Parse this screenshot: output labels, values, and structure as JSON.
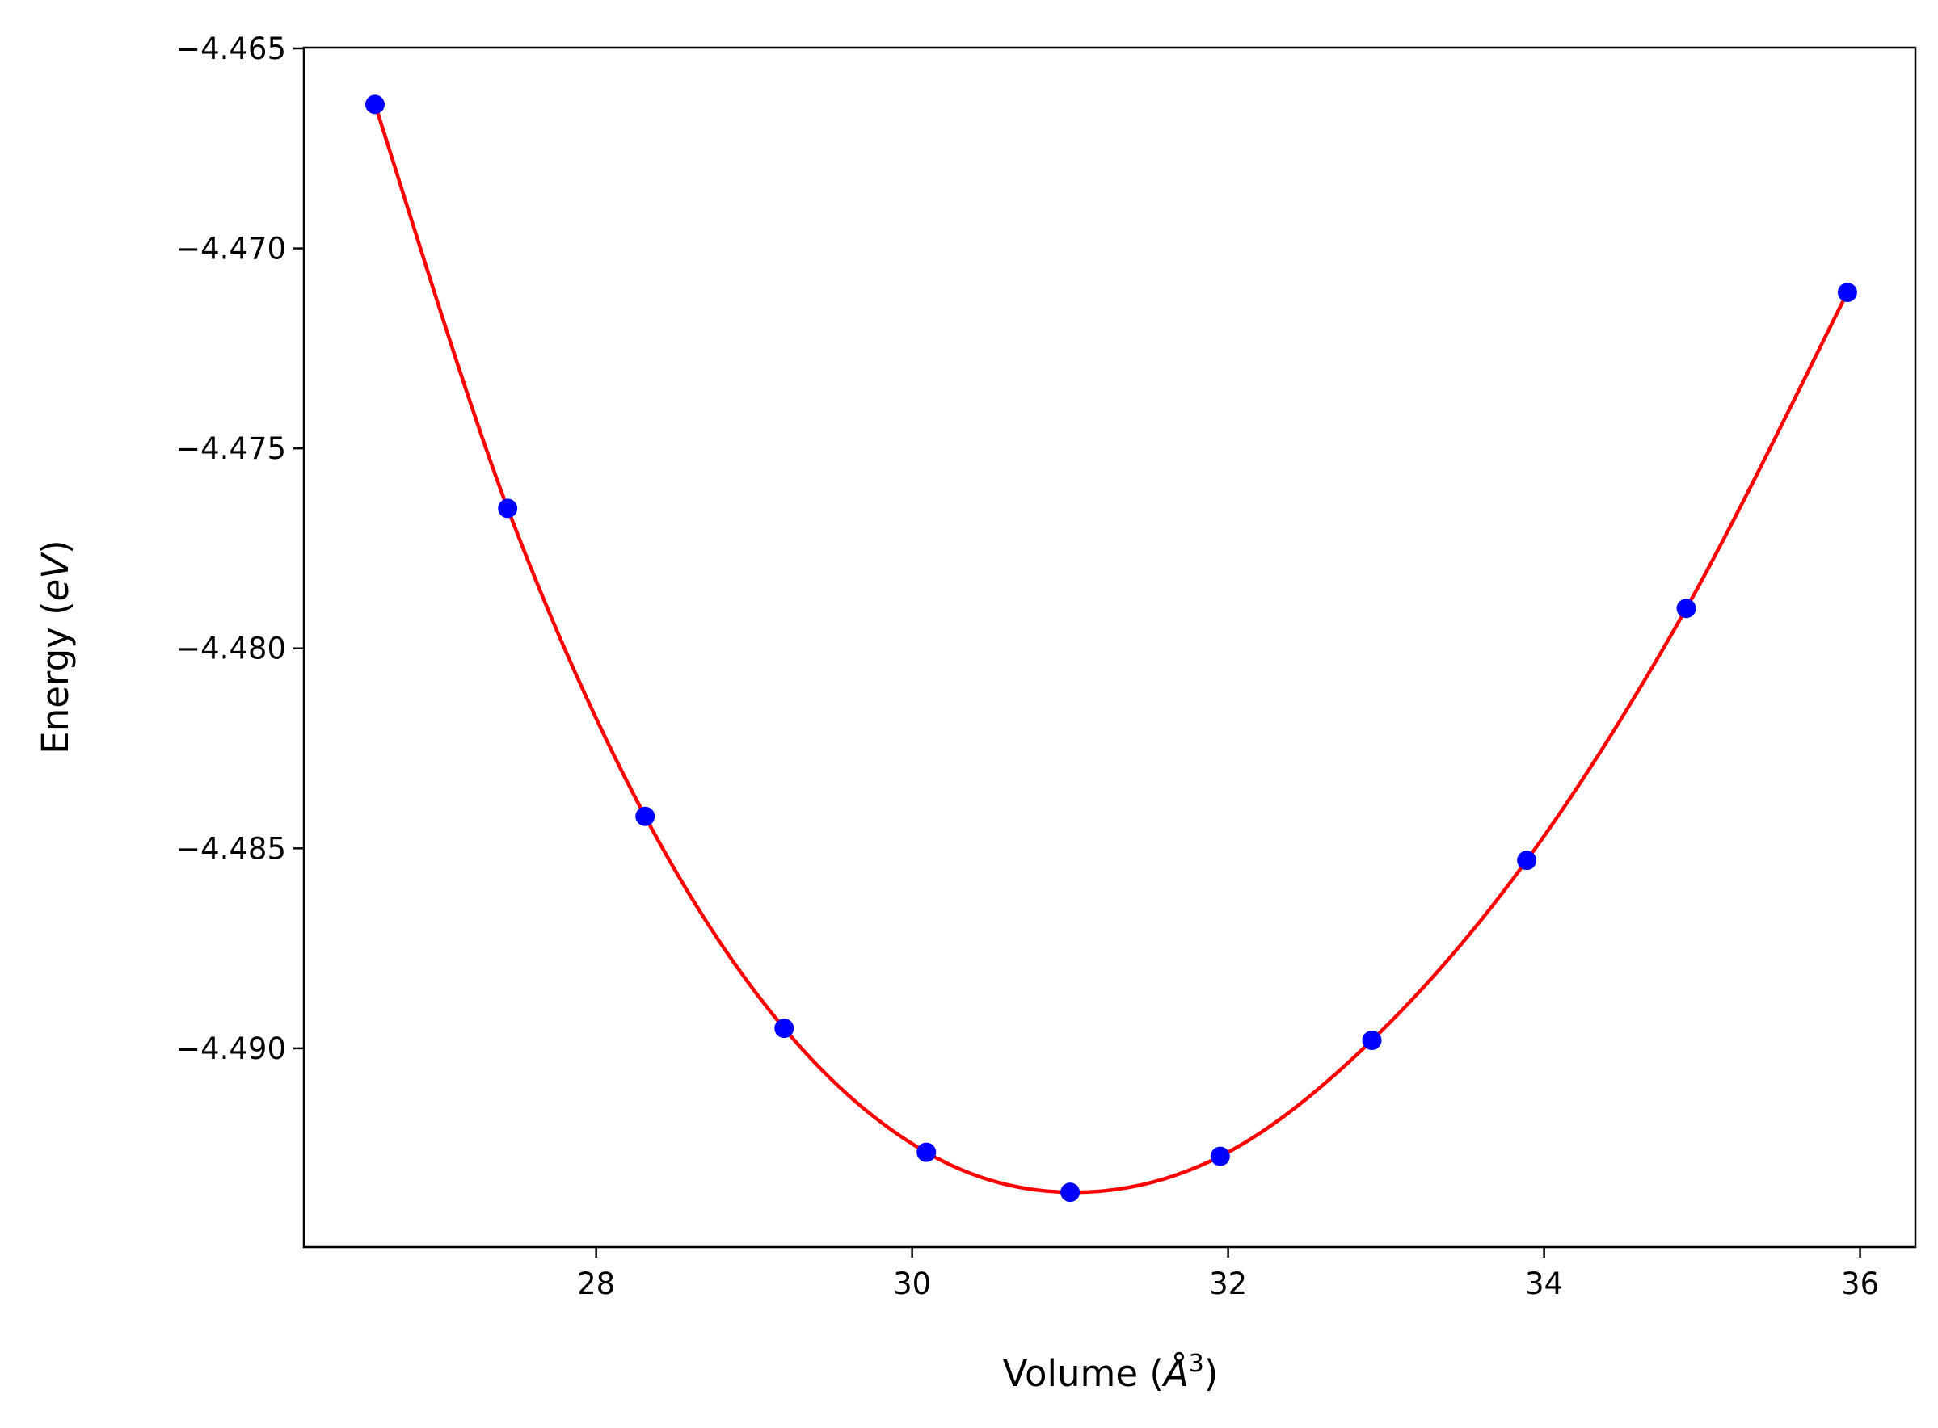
{
  "chart_data": {
    "type": "line",
    "xlabel": "Volume (",
    "xlabel_symbol": "Å",
    "xlabel_exponent": "3",
    "xlabel_close": ")",
    "ylabel": "Energy (",
    "ylabel_symbol": "eV",
    "ylabel_close": ")",
    "xlim": [
      26.15,
      36.35
    ],
    "ylim": [
      -4.49497,
      -4.46498
    ],
    "x_ticks": [
      28,
      30,
      32,
      34,
      36
    ],
    "x_tick_labels": [
      "28",
      "30",
      "32",
      "34",
      "36"
    ],
    "y_ticks": [
      -4.465,
      -4.47,
      -4.475,
      -4.48,
      -4.485,
      -4.49
    ],
    "y_tick_labels": [
      "−4.465",
      "−4.470",
      "−4.475",
      "−4.480",
      "−4.485",
      "−4.490"
    ],
    "grid": false,
    "colors": {
      "fit_line": "#ff0000",
      "points": "#0000ff",
      "axes": "#000000"
    },
    "series": [
      {
        "kind": "points",
        "x": [
          26.6,
          27.44,
          28.31,
          29.19,
          30.09,
          31.0,
          31.95,
          32.91,
          33.89,
          34.9,
          35.92
        ],
        "y": [
          -4.4664,
          -4.4765,
          -4.4842,
          -4.4895,
          -4.4926,
          -4.4936,
          -4.4927,
          -4.4898,
          -4.4853,
          -4.479,
          -4.4711
        ]
      },
      {
        "kind": "fit-line",
        "x": [
          26.6,
          27.44,
          28.31,
          29.19,
          30.09,
          31.0,
          31.95,
          32.91,
          33.89,
          34.9,
          35.92
        ],
        "y": [
          -4.4664,
          -4.4765,
          -4.4842,
          -4.4895,
          -4.4926,
          -4.4936,
          -4.4927,
          -4.4898,
          -4.4853,
          -4.479,
          -4.4711
        ]
      }
    ]
  }
}
